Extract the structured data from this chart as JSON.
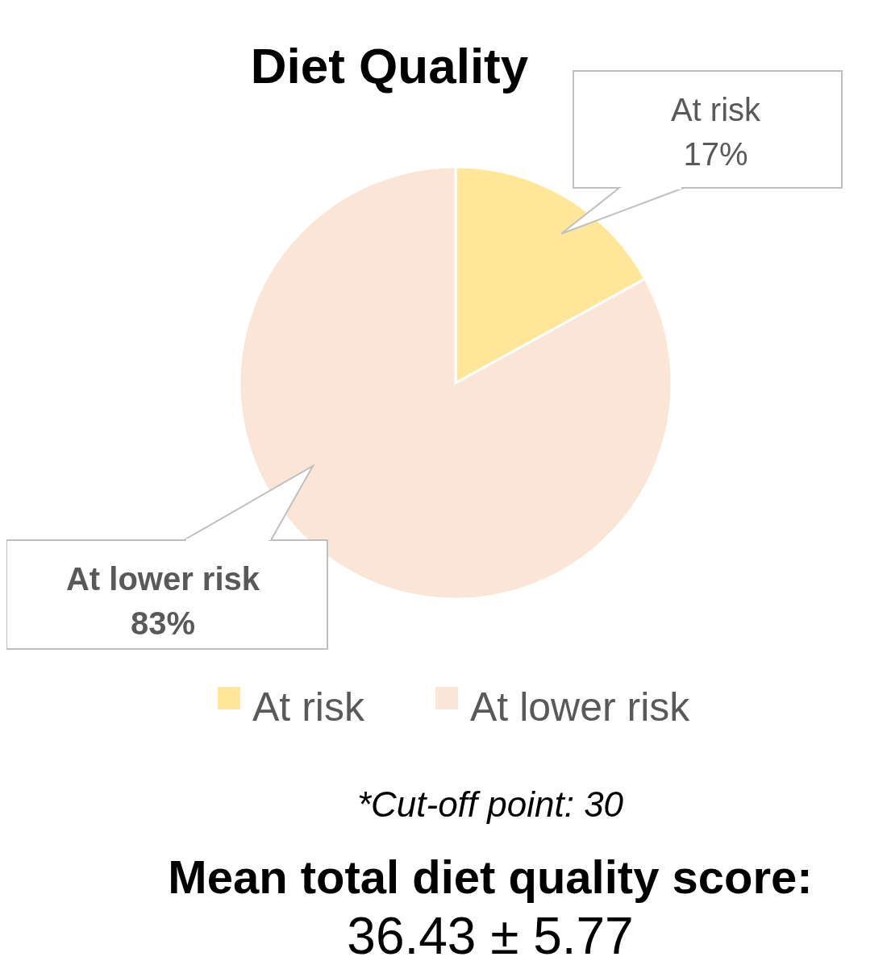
{
  "chart_data": {
    "type": "pie",
    "title": "Diet Quality",
    "categories": [
      "At risk",
      "At lower risk"
    ],
    "values": [
      17,
      83
    ],
    "colors": [
      "#ffe699",
      "#fbe5d6"
    ],
    "value_labels": [
      "17%",
      "83%"
    ],
    "legend": "bottom",
    "annotations": [
      "*Cut-off point: 30",
      "Mean total diet quality score:",
      "36.43 ± 5.77"
    ]
  }
}
